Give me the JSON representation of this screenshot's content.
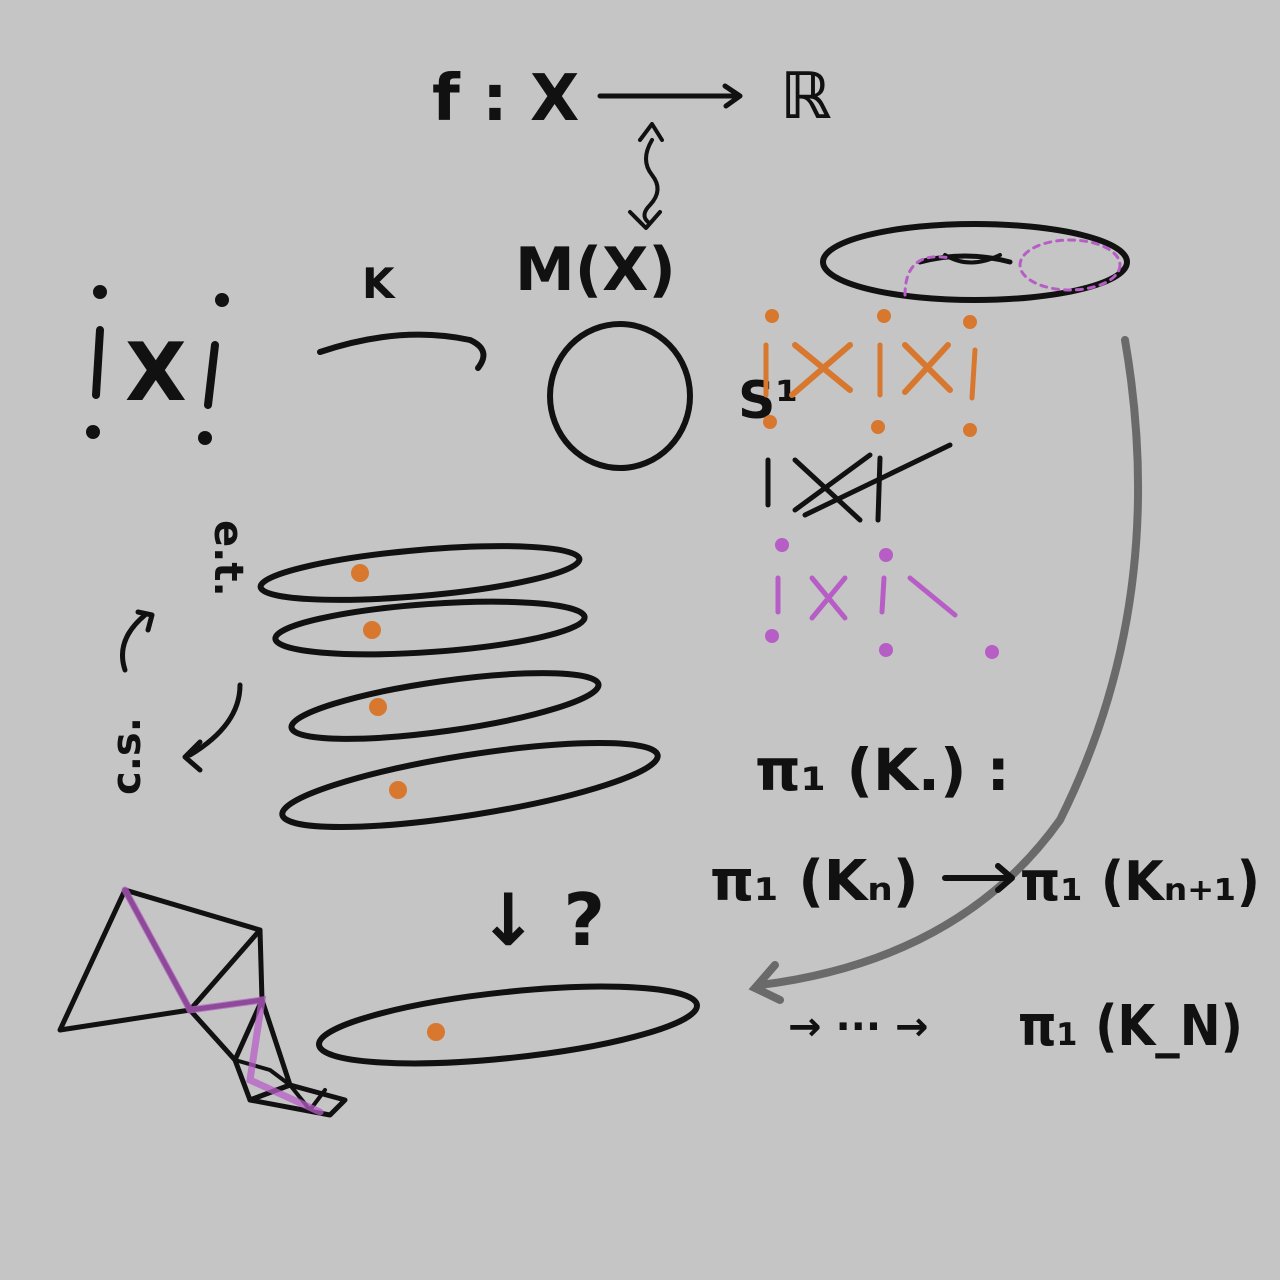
{
  "canvas": {
    "background": "#c5c5c5"
  },
  "colors": {
    "ink": "#111111",
    "orange": "#d8782e",
    "purple": "#b65ec5",
    "gray_arrow": "#6a6a6a"
  },
  "top": {
    "function": "f : X",
    "codomain": "ℝ",
    "moduli": "M(X)"
  },
  "left_cluster": {
    "symbol": "X"
  },
  "arrow_label": "K",
  "circle_label": "S¹",
  "side_vertical_text": "c.s. ← ... → e.t.",
  "side_words": {
    "top": "e.t.",
    "bottom": "c.s."
  },
  "question": "↓ ?",
  "pi_lines": {
    "line1": "π₁ (K.) :",
    "line2_left": "π₁ (Kₙ)",
    "line2_right": "π₁ (Kₙ₊₁)",
    "line3_prefix": "→ ··· →",
    "line3_right": "π₁ (K_N)"
  }
}
